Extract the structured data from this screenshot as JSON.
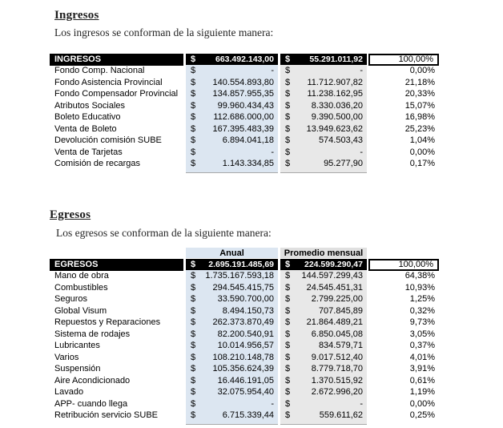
{
  "currency_symbol": "$",
  "colors": {
    "header_bg": "#000000",
    "header_text": "#ffffff",
    "anual_col_bg": "#dce6f1",
    "mensual_col_bg": "#e8e8e8"
  },
  "ingresos": {
    "title": "Ingresos",
    "intro": "Los ingresos se conforman de la siguiente manera:",
    "table": {
      "header": {
        "label": "INGRESOS",
        "anual": "663.492.143,00",
        "mensual": "55.291.011,92",
        "pct": "100,00%"
      },
      "rows": [
        {
          "label": "Fondo Comp. Nacional",
          "anual": "-",
          "mensual": "-",
          "pct": "0,00%"
        },
        {
          "label": "Fondo Asistencia Provincial",
          "anual": "140.554.893,80",
          "mensual": "11.712.907,82",
          "pct": "21,18%"
        },
        {
          "label": "Fondo Compensador Provincial",
          "anual": "134.857.955,35",
          "mensual": "11.238.162,95",
          "pct": "20,33%"
        },
        {
          "label": "Atributos Sociales",
          "anual": "99.960.434,43",
          "mensual": "8.330.036,20",
          "pct": "15,07%"
        },
        {
          "label": "Boleto Educativo",
          "anual": "112.686.000,00",
          "mensual": "9.390.500,00",
          "pct": "16,98%"
        },
        {
          "label": "Venta de Boleto",
          "anual": "167.395.483,39",
          "mensual": "13.949.623,62",
          "pct": "25,23%"
        },
        {
          "label": "Devolución comisión SUBE",
          "anual": "6.894.041,18",
          "mensual": "574.503,43",
          "pct": "1,04%"
        },
        {
          "label": "Venta de Tarjetas",
          "anual": "-",
          "mensual": "-",
          "pct": "0,00%"
        },
        {
          "label": "Comisión de recargas",
          "anual": "1.143.334,85",
          "mensual": "95.277,90",
          "pct": "0,17%"
        }
      ]
    }
  },
  "egresos": {
    "title": "Egresos",
    "intro": "Los egresos se conforman de la siguiente manera:",
    "table": {
      "col_headers": {
        "anual": "Anual",
        "mensual": "Promedio mensual"
      },
      "header": {
        "label": "EGRESOS",
        "anual": "2.695.191.485,69",
        "mensual": "224.599.290,47",
        "pct": "100,00%"
      },
      "rows": [
        {
          "label": "Mano de obra",
          "anual": "1.735.167.593,18",
          "mensual": "144.597.299,43",
          "pct": "64,38%"
        },
        {
          "label": "Combustibles",
          "anual": "294.545.415,75",
          "mensual": "24.545.451,31",
          "pct": "10,93%"
        },
        {
          "label": "Seguros",
          "anual": "33.590.700,00",
          "mensual": "2.799.225,00",
          "pct": "1,25%"
        },
        {
          "label": "Global Visum",
          "anual": "8.494.150,73",
          "mensual": "707.845,89",
          "pct": "0,32%"
        },
        {
          "label": "Repuestos y Reparaciones",
          "anual": "262.373.870,49",
          "mensual": "21.864.489,21",
          "pct": "9,73%"
        },
        {
          "label": "Sistema de rodajes",
          "anual": "82.200.540,91",
          "mensual": "6.850.045,08",
          "pct": "3,05%"
        },
        {
          "label": "Lubricantes",
          "anual": "10.014.956,57",
          "mensual": "834.579,71",
          "pct": "0,37%"
        },
        {
          "label": "Varios",
          "anual": "108.210.148,78",
          "mensual": "9.017.512,40",
          "pct": "4,01%"
        },
        {
          "label": "Suspensión",
          "anual": "105.356.624,39",
          "mensual": "8.779.718,70",
          "pct": "3,91%"
        },
        {
          "label": "Aire Acondicionado",
          "anual": "16.446.191,05",
          "mensual": "1.370.515,92",
          "pct": "0,61%"
        },
        {
          "label": "Lavado",
          "anual": "32.075.954,40",
          "mensual": "2.672.996,20",
          "pct": "1,19%"
        },
        {
          "label": "APP- cuando llega",
          "anual": "-",
          "mensual": "-",
          "pct": "0,00%"
        },
        {
          "label": "Retribución servicio SUBE",
          "anual": "6.715.339,44",
          "mensual": "559.611,62",
          "pct": "0,25%"
        }
      ]
    }
  }
}
